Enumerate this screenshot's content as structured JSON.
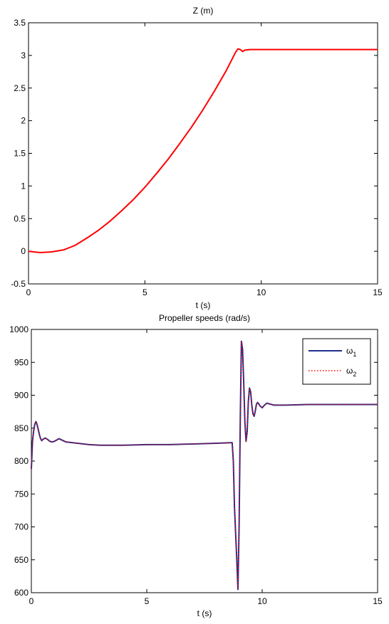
{
  "chart_data": [
    {
      "type": "line",
      "title": "Z (m)",
      "xlabel": "t (s)",
      "ylabel": "",
      "xlim": [
        0,
        15
      ],
      "ylim": [
        -0.5,
        3.5
      ],
      "xticks": [
        0,
        5,
        10,
        15
      ],
      "yticks": [
        -0.5,
        0,
        0.5,
        1,
        1.5,
        2,
        2.5,
        3,
        3.5
      ],
      "xtick_labels": [
        "0",
        "5",
        "10",
        "15"
      ],
      "ytick_labels": [
        "-0.5",
        "0",
        "0.5",
        "1",
        "1.5",
        "2",
        "2.5",
        "3",
        "3.5"
      ],
      "grid": false,
      "series": [
        {
          "color": "#ff0000",
          "x": [
            0,
            0.5,
            1,
            1.5,
            2,
            2.5,
            3,
            3.5,
            4,
            4.5,
            5,
            5.5,
            6,
            6.5,
            7,
            7.5,
            8,
            8.5,
            8.9,
            9.0,
            9.1,
            9.2,
            9.3,
            9.5,
            10,
            11,
            12,
            13,
            14,
            15
          ],
          "y": [
            0,
            -0.02,
            -0.01,
            0.02,
            0.09,
            0.2,
            0.32,
            0.46,
            0.62,
            0.79,
            0.98,
            1.19,
            1.41,
            1.65,
            1.9,
            2.17,
            2.46,
            2.77,
            3.05,
            3.1,
            3.09,
            3.06,
            3.08,
            3.09,
            3.09,
            3.09,
            3.09,
            3.09,
            3.09,
            3.09
          ]
        }
      ]
    },
    {
      "type": "line",
      "title": "Propeller speeds (rad/s)",
      "xlabel": "t (s)",
      "ylabel": "",
      "xlim": [
        0,
        15
      ],
      "ylim": [
        600,
        1000
      ],
      "xticks": [
        0,
        5,
        10,
        15
      ],
      "yticks": [
        600,
        650,
        700,
        750,
        800,
        850,
        900,
        950,
        1000
      ],
      "xtick_labels": [
        "0",
        "5",
        "10",
        "15"
      ],
      "ytick_labels": [
        "600",
        "650",
        "700",
        "750",
        "800",
        "850",
        "900",
        "950",
        "1000"
      ],
      "grid": false,
      "legend": {
        "placement": "top-right",
        "labels": [
          {
            "base": "ω",
            "sub": "1"
          },
          {
            "base": "ω",
            "sub": "2"
          }
        ]
      },
      "series": [
        {
          "color": "#1f2f8f",
          "style": "solid",
          "x": [
            0,
            0.05,
            0.1,
            0.15,
            0.2,
            0.25,
            0.3,
            0.35,
            0.4,
            0.45,
            0.5,
            0.6,
            0.7,
            0.8,
            0.9,
            1.0,
            1.1,
            1.2,
            1.5,
            2.0,
            2.5,
            3,
            4,
            5,
            6,
            7,
            8,
            8.7,
            8.75,
            8.8,
            8.85,
            8.9,
            8.95,
            9.0,
            9.05,
            9.1,
            9.15,
            9.2,
            9.25,
            9.3,
            9.35,
            9.4,
            9.45,
            9.5,
            9.55,
            9.6,
            9.65,
            9.7,
            9.75,
            9.8,
            9.85,
            9.9,
            10.0,
            10.1,
            10.2,
            10.3,
            10.5,
            11,
            12,
            13,
            14,
            15
          ],
          "y": [
            788,
            830,
            846,
            856,
            860,
            855,
            848,
            840,
            834,
            831,
            833,
            835,
            833,
            830,
            829,
            830,
            832,
            834,
            829,
            827,
            825,
            824,
            824,
            825,
            825,
            826,
            827,
            828,
            800,
            730,
            690,
            650,
            605,
            700,
            860,
            982,
            970,
            920,
            860,
            830,
            845,
            890,
            911,
            905,
            885,
            872,
            868,
            876,
            886,
            889,
            887,
            884,
            881,
            885,
            888,
            887,
            885,
            885,
            886,
            886,
            886,
            886
          ]
        },
        {
          "color": "#ff0000",
          "style": "dotted",
          "x": [
            0,
            0.05,
            0.1,
            0.15,
            0.2,
            0.25,
            0.3,
            0.35,
            0.4,
            0.45,
            0.5,
            0.6,
            0.7,
            0.8,
            0.9,
            1.0,
            1.1,
            1.2,
            1.5,
            2.0,
            2.5,
            3,
            4,
            5,
            6,
            7,
            8,
            8.7,
            8.75,
            8.8,
            8.85,
            8.9,
            8.95,
            9.0,
            9.05,
            9.1,
            9.15,
            9.2,
            9.25,
            9.3,
            9.35,
            9.4,
            9.45,
            9.5,
            9.55,
            9.6,
            9.65,
            9.7,
            9.75,
            9.8,
            9.85,
            9.9,
            10.0,
            10.1,
            10.2,
            10.3,
            10.5,
            11,
            12,
            13,
            14,
            15
          ],
          "y": [
            788,
            830,
            846,
            856,
            860,
            855,
            848,
            840,
            834,
            831,
            833,
            835,
            833,
            830,
            829,
            830,
            832,
            834,
            829,
            827,
            825,
            824,
            824,
            825,
            825,
            826,
            827,
            828,
            800,
            730,
            690,
            650,
            605,
            700,
            860,
            982,
            970,
            920,
            860,
            830,
            845,
            890,
            911,
            905,
            885,
            872,
            868,
            876,
            886,
            889,
            887,
            884,
            881,
            885,
            888,
            887,
            885,
            885,
            886,
            886,
            886,
            886
          ]
        }
      ]
    }
  ]
}
